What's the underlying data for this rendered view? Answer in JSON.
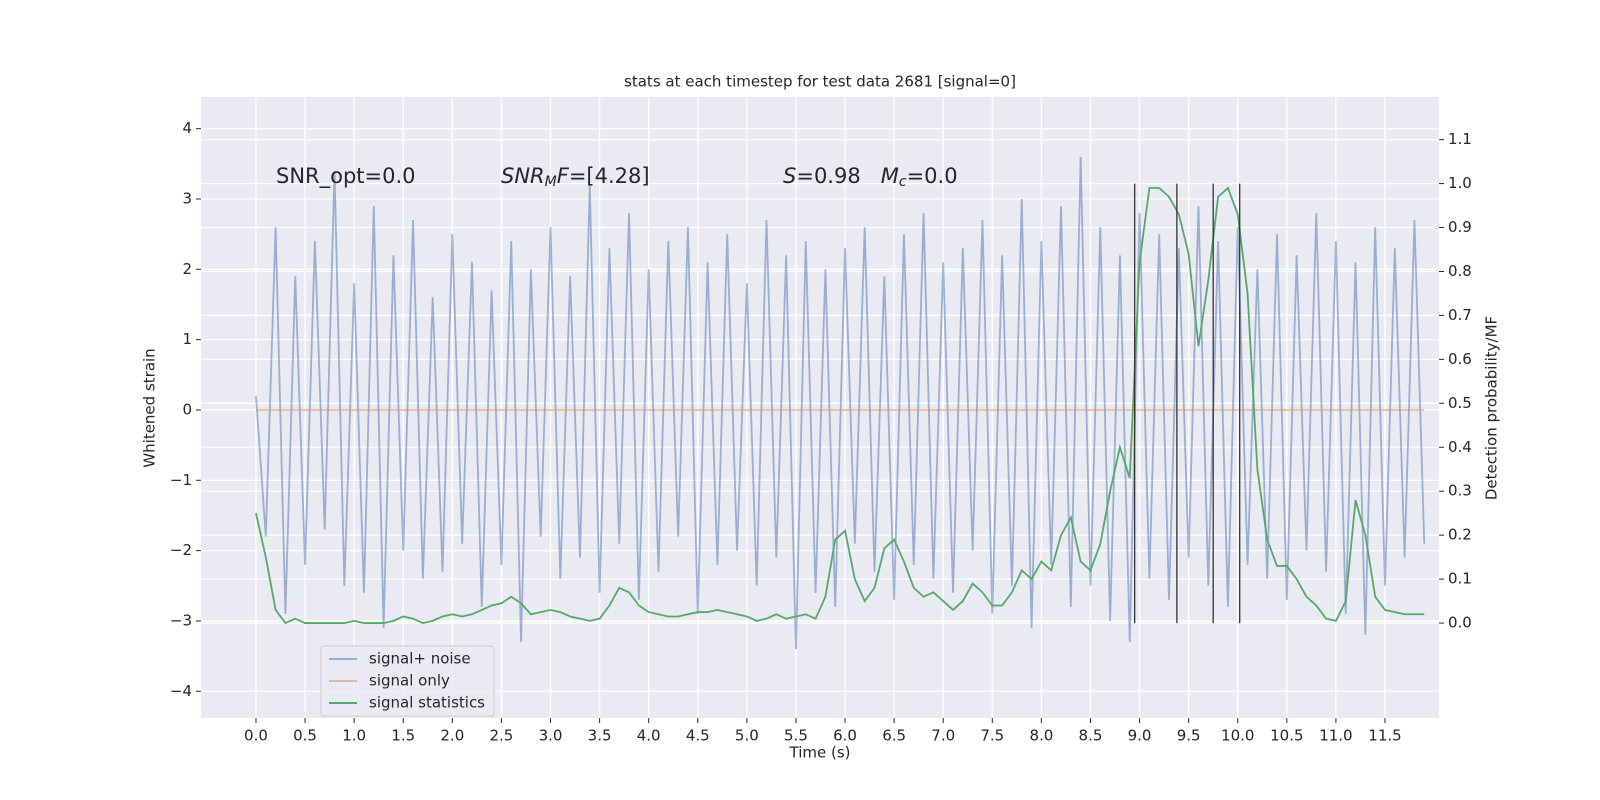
{
  "chart_data": {
    "type": "line",
    "title": "stats at each timestep for test data 2681 [signal=0]",
    "xlabel": "Time (s)",
    "ylabel": "Whitened strain",
    "y2label": "Detection probability/MF",
    "annotations": [
      [
        {
          "text": "SNR_opt=0.0",
          "style": "normal"
        }
      ],
      [
        {
          "text": "SNR",
          "style": "italic"
        },
        {
          "text": "M",
          "style": "sub"
        },
        {
          "text": "F",
          "style": "italic"
        },
        {
          "text": "=[4.28]",
          "style": "normal"
        }
      ],
      [
        {
          "text": "S",
          "style": "italic"
        },
        {
          "text": "=0.98   ",
          "style": "normal"
        },
        {
          "text": "M",
          "style": "italic"
        },
        {
          "text": "c",
          "style": "sub"
        },
        {
          "text": "=0.0",
          "style": "normal"
        }
      ]
    ],
    "x": [
      0.0,
      0.1,
      0.2,
      0.3,
      0.4,
      0.5,
      0.6,
      0.7,
      0.8,
      0.9,
      1.0,
      1.1,
      1.2,
      1.3,
      1.4,
      1.5,
      1.6,
      1.7,
      1.8,
      1.9,
      2.0,
      2.1,
      2.2,
      2.3,
      2.4,
      2.5,
      2.6,
      2.7,
      2.8,
      2.9,
      3.0,
      3.1,
      3.2,
      3.3,
      3.4,
      3.5,
      3.6,
      3.7,
      3.8,
      3.9,
      4.0,
      4.1,
      4.2,
      4.3,
      4.4,
      4.5,
      4.6,
      4.7,
      4.8,
      4.9,
      5.0,
      5.1,
      5.2,
      5.3,
      5.4,
      5.5,
      5.6,
      5.7,
      5.8,
      5.9,
      6.0,
      6.1,
      6.2,
      6.3,
      6.4,
      6.5,
      6.6,
      6.7,
      6.8,
      6.9,
      7.0,
      7.1,
      7.2,
      7.3,
      7.4,
      7.5,
      7.6,
      7.7,
      7.8,
      7.9,
      8.0,
      8.1,
      8.2,
      8.3,
      8.4,
      8.5,
      8.6,
      8.7,
      8.8,
      8.9,
      9.0,
      9.1,
      9.2,
      9.3,
      9.4,
      9.5,
      9.6,
      9.7,
      9.8,
      9.9,
      10.0,
      10.1,
      10.2,
      10.3,
      10.4,
      10.5,
      10.6,
      10.7,
      10.8,
      10.9,
      11.0,
      11.1,
      11.2,
      11.3,
      11.4,
      11.5,
      11.6,
      11.7,
      11.8,
      11.9
    ],
    "series": [
      {
        "name": "signal+ noise",
        "color": "#4c72b0",
        "opacity": 0.5,
        "values": [
          0.2,
          -1.8,
          2.6,
          -2.9,
          1.9,
          -2.2,
          2.4,
          -1.7,
          3.4,
          -2.5,
          1.8,
          -2.6,
          2.9,
          -3.1,
          2.2,
          -2.0,
          2.7,
          -2.4,
          1.6,
          -2.3,
          2.5,
          -1.9,
          2.1,
          -2.8,
          1.7,
          -2.2,
          2.4,
          -3.3,
          2.0,
          -1.8,
          2.6,
          -2.4,
          1.9,
          -2.1,
          3.2,
          -2.6,
          2.3,
          -1.9,
          2.8,
          -2.7,
          2.0,
          -2.3,
          2.4,
          -1.8,
          2.6,
          -2.9,
          2.1,
          -2.2,
          2.5,
          -2.0,
          1.8,
          -2.5,
          2.7,
          -2.1,
          2.2,
          -3.4,
          2.4,
          -2.6,
          2.0,
          -2.8,
          2.3,
          -1.9,
          2.6,
          -2.3,
          1.9,
          -2.7,
          2.5,
          -2.2,
          2.8,
          -2.4,
          2.1,
          -2.6,
          2.3,
          -2.0,
          2.7,
          -2.9,
          2.2,
          -2.5,
          3.0,
          -3.1,
          2.4,
          -2.2,
          2.9,
          -2.8,
          3.6,
          -2.5,
          2.6,
          -3.0,
          2.2,
          -3.3,
          2.8,
          -2.4,
          2.5,
          -2.7,
          2.3,
          -2.1,
          2.9,
          -2.5,
          2.4,
          -2.8,
          2.6,
          -2.2,
          2.0,
          -2.4,
          2.5,
          -2.7,
          2.2,
          -2.0,
          2.8,
          -2.3,
          2.4,
          -2.9,
          2.1,
          -3.2,
          2.6,
          -2.5,
          2.3,
          -2.1,
          2.7,
          -1.9
        ]
      },
      {
        "name": "signal only",
        "color": "#dd8452",
        "opacity": 0.5,
        "values": [
          0,
          0,
          0,
          0,
          0,
          0,
          0,
          0,
          0,
          0,
          0,
          0,
          0,
          0,
          0,
          0,
          0,
          0,
          0,
          0,
          0,
          0,
          0,
          0,
          0,
          0,
          0,
          0,
          0,
          0,
          0,
          0,
          0,
          0,
          0,
          0,
          0,
          0,
          0,
          0,
          0,
          0,
          0,
          0,
          0,
          0,
          0,
          0,
          0,
          0,
          0,
          0,
          0,
          0,
          0,
          0,
          0,
          0,
          0,
          0,
          0,
          0,
          0,
          0,
          0,
          0,
          0,
          0,
          0,
          0,
          0,
          0,
          0,
          0,
          0,
          0,
          0,
          0,
          0,
          0,
          0,
          0,
          0,
          0,
          0,
          0,
          0,
          0,
          0,
          0,
          0,
          0,
          0,
          0,
          0,
          0,
          0,
          0,
          0,
          0,
          0,
          0,
          0,
          0,
          0,
          0,
          0,
          0,
          0,
          0,
          0,
          0,
          0,
          0,
          0,
          0,
          0,
          0,
          0,
          0
        ]
      },
      {
        "name": "signal statistics",
        "color": "#55a868",
        "opacity": 1,
        "axis": "y2",
        "values": [
          0.25,
          0.15,
          0.03,
          0.0,
          0.01,
          0.0,
          0.0,
          0.0,
          0.0,
          0.0,
          0.005,
          0.0,
          0.0,
          0.0,
          0.005,
          0.015,
          0.01,
          0.0,
          0.005,
          0.015,
          0.02,
          0.015,
          0.02,
          0.03,
          0.04,
          0.045,
          0.06,
          0.045,
          0.02,
          0.025,
          0.03,
          0.025,
          0.015,
          0.01,
          0.005,
          0.01,
          0.04,
          0.08,
          0.07,
          0.04,
          0.025,
          0.02,
          0.015,
          0.015,
          0.02,
          0.025,
          0.025,
          0.03,
          0.025,
          0.02,
          0.015,
          0.005,
          0.01,
          0.02,
          0.01,
          0.015,
          0.02,
          0.01,
          0.06,
          0.19,
          0.21,
          0.1,
          0.05,
          0.08,
          0.17,
          0.19,
          0.14,
          0.08,
          0.06,
          0.07,
          0.05,
          0.03,
          0.05,
          0.09,
          0.07,
          0.04,
          0.04,
          0.07,
          0.12,
          0.1,
          0.14,
          0.12,
          0.2,
          0.24,
          0.14,
          0.12,
          0.18,
          0.3,
          0.4,
          0.33,
          0.82,
          0.99,
          0.99,
          0.97,
          0.93,
          0.84,
          0.63,
          0.78,
          0.97,
          0.99,
          0.93,
          0.75,
          0.35,
          0.19,
          0.13,
          0.13,
          0.1,
          0.06,
          0.04,
          0.01,
          0.005,
          0.05,
          0.28,
          0.2,
          0.06,
          0.03,
          0.025,
          0.02,
          0.02,
          0.02
        ]
      }
    ],
    "vlines": {
      "x": [
        8.95,
        9.38,
        9.75,
        10.02
      ],
      "ymin": 0,
      "ymax": 1,
      "color": "#333333",
      "axis": "y2"
    },
    "xlim": [
      -0.56,
      12.05
    ],
    "ylim": [
      -4.38,
      4.45
    ],
    "y2lim": [
      -0.216,
      1.197
    ],
    "xticks": [
      {
        "value": 0,
        "label": "0.0"
      },
      {
        "value": 0.5,
        "label": "0.5"
      },
      {
        "value": 1,
        "label": "1.0"
      },
      {
        "value": 1.5,
        "label": "1.5"
      },
      {
        "value": 2,
        "label": "2.0"
      },
      {
        "value": 2.5,
        "label": "2.5"
      },
      {
        "value": 3,
        "label": "3.0"
      },
      {
        "value": 3.5,
        "label": "3.5"
      },
      {
        "value": 4,
        "label": "4.0"
      },
      {
        "value": 4.5,
        "label": "4.5"
      },
      {
        "value": 5,
        "label": "5.0"
      },
      {
        "value": 5.5,
        "label": "5.5"
      },
      {
        "value": 6,
        "label": "6.0"
      },
      {
        "value": 6.5,
        "label": "6.5"
      },
      {
        "value": 7,
        "label": "7.0"
      },
      {
        "value": 7.5,
        "label": "7.5"
      },
      {
        "value": 8,
        "label": "8.0"
      },
      {
        "value": 8.5,
        "label": "8.5"
      },
      {
        "value": 9,
        "label": "9.0"
      },
      {
        "value": 9.5,
        "label": "9.5"
      },
      {
        "value": 10,
        "label": "10.0"
      },
      {
        "value": 10.5,
        "label": "10.5"
      },
      {
        "value": 11,
        "label": "11.0"
      },
      {
        "value": 11.5,
        "label": "11.5"
      }
    ],
    "yticks": [
      {
        "value": -4,
        "label": "−4"
      },
      {
        "value": -3,
        "label": "−3"
      },
      {
        "value": -2,
        "label": "−2"
      },
      {
        "value": -1,
        "label": "−1"
      },
      0,
      1,
      2,
      3,
      4
    ],
    "y2ticks": [
      {
        "value": 0,
        "label": "0.0"
      },
      {
        "value": 0.1,
        "label": "0.1"
      },
      {
        "value": 0.2,
        "label": "0.2"
      },
      {
        "value": 0.3,
        "label": "0.3"
      },
      {
        "value": 0.4,
        "label": "0.4"
      },
      {
        "value": 0.5,
        "label": "0.5"
      },
      {
        "value": 0.6,
        "label": "0.6"
      },
      {
        "value": 0.7,
        "label": "0.7"
      },
      {
        "value": 0.8,
        "label": "0.8"
      },
      {
        "value": 0.9,
        "label": "0.9"
      },
      {
        "value": 1,
        "label": "1.0"
      },
      {
        "value": 1.1,
        "label": "1.1"
      }
    ],
    "grid": true,
    "background": "#eaeaf2",
    "legend": "lower left"
  }
}
